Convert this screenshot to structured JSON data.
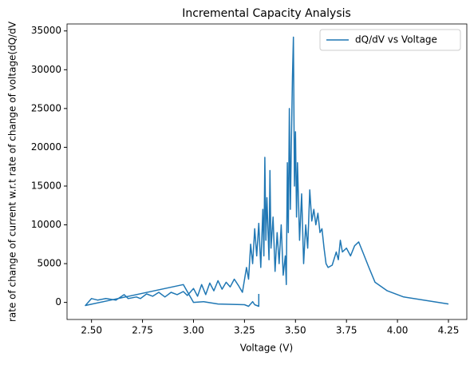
{
  "chart_data": {
    "type": "line",
    "title": "Incremental Capacity Analysis",
    "xlabel": "Voltage (V)",
    "ylabel": "rate of change of current w.r.t rate of change of voltage(dQ/dV",
    "xlim": [
      2.38,
      4.34
    ],
    "ylim": [
      -2200,
      35900
    ],
    "xticks": [
      {
        "value": 2.5,
        "label": "2.50"
      },
      2.75,
      {
        "value": 3.0,
        "label": "3.00"
      },
      3.25,
      {
        "value": 3.5,
        "label": "3.50"
      },
      3.75,
      {
        "value": 4.0,
        "label": "4.00"
      },
      4.25
    ],
    "yticks": [
      0,
      5000,
      10000,
      15000,
      20000,
      25000,
      30000,
      35000
    ],
    "legend": "upper right",
    "x": [
      3.32,
      3.32,
      3.3,
      3.29,
      3.27,
      3.25,
      3.12,
      3.05,
      3.0,
      2.95,
      2.47,
      2.5,
      2.53,
      2.57,
      2.62,
      2.66,
      2.68,
      2.72,
      2.74,
      2.77,
      2.8,
      2.83,
      2.86,
      2.89,
      2.92,
      2.95,
      2.97,
      3.0,
      3.02,
      3.04,
      3.06,
      3.08,
      3.1,
      3.12,
      3.14,
      3.16,
      3.18,
      3.2,
      3.22,
      3.24,
      3.26,
      3.27,
      3.28,
      3.29,
      3.3,
      3.31,
      3.32,
      3.33,
      3.34,
      3.345,
      3.35,
      3.355,
      3.36,
      3.37,
      3.375,
      3.38,
      3.39,
      3.4,
      3.41,
      3.42,
      3.43,
      3.44,
      3.45,
      3.455,
      3.46,
      3.465,
      3.47,
      3.475,
      3.48,
      3.485,
      3.49,
      3.495,
      3.5,
      3.505,
      3.51,
      3.52,
      3.53,
      3.54,
      3.55,
      3.56,
      3.57,
      3.58,
      3.59,
      3.6,
      3.61,
      3.62,
      3.63,
      3.64,
      3.65,
      3.66,
      3.68,
      3.7,
      3.71,
      3.72,
      3.73,
      3.75,
      3.77,
      3.79,
      3.81,
      3.83,
      3.86,
      3.89,
      3.95,
      4.03,
      4.25
    ],
    "series": [
      {
        "name": "dQ/dV vs Voltage",
        "color": "#1f77b4",
        "values": [
          1100,
          -500,
          -300,
          100,
          -500,
          -300,
          -200,
          100,
          0,
          2300,
          -400,
          500,
          300,
          500,
          300,
          1000,
          500,
          700,
          500,
          1100,
          800,
          1300,
          700,
          1300,
          1000,
          1400,
          900,
          1800,
          800,
          2300,
          1000,
          2500,
          1500,
          2800,
          1700,
          2600,
          2000,
          3000,
          2200,
          1300,
          4500,
          3000,
          7500,
          5000,
          9500,
          6000,
          10200,
          4500,
          12000,
          6000,
          18700,
          8000,
          13500,
          5500,
          17000,
          7000,
          11000,
          4000,
          9000,
          5000,
          10000,
          3500,
          6000,
          2300,
          18000,
          9000,
          25000,
          12000,
          21000,
          29000,
          34200,
          15000,
          22000,
          11000,
          18000,
          8000,
          14000,
          5000,
          10000,
          7000,
          14500,
          10500,
          12000,
          10000,
          11500,
          9000,
          9500,
          7000,
          5000,
          4500,
          4800,
          6500,
          5500,
          8000,
          6500,
          7000,
          6000,
          7300,
          7800,
          6500,
          4500,
          2600,
          1500,
          700,
          -200
        ]
      }
    ]
  }
}
